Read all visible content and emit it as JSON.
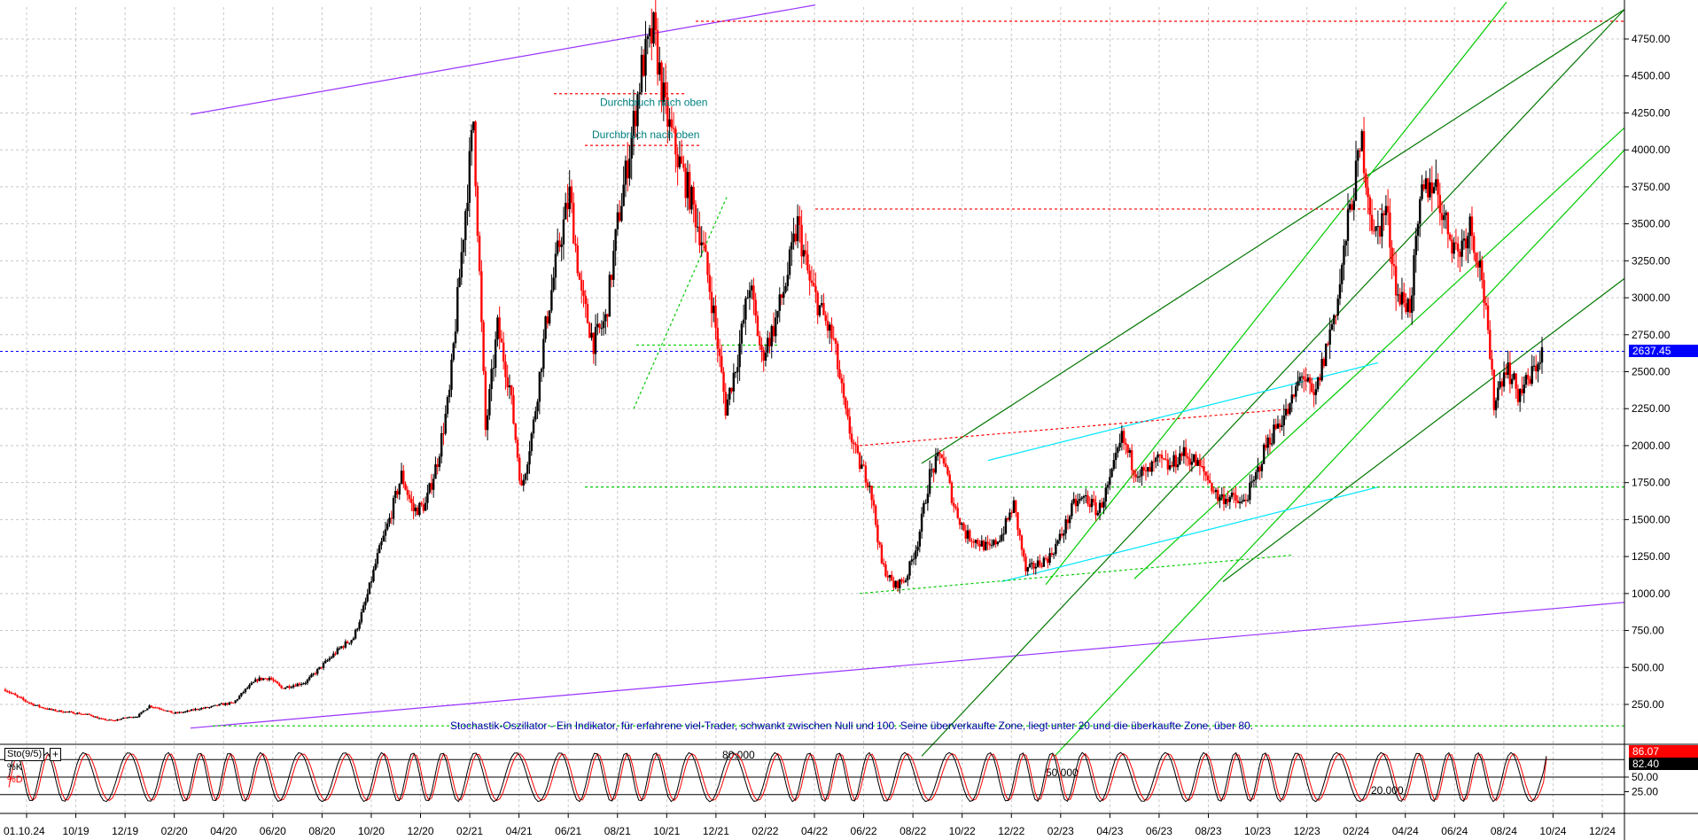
{
  "chart_data": [
    {
      "type": "candlestick",
      "ylim": [
        0,
        5000
      ],
      "y_ticks": [
        "250.00",
        "500.00",
        "750.00",
        "1000.00",
        "1250.00",
        "1500.00",
        "1750.00",
        "2000.00",
        "2250.00",
        "2500.00",
        "2750.00",
        "3000.00",
        "3250.00",
        "3500.00",
        "3750.00",
        "4000.00",
        "4250.00",
        "4500.00",
        "4750.00"
      ],
      "y_tick_values": [
        250,
        500,
        750,
        1000,
        1250,
        1500,
        1750,
        2000,
        2250,
        2500,
        2750,
        3000,
        3250,
        3500,
        3750,
        4000,
        4250,
        4500,
        4750
      ],
      "x_ticks": [
        "01.10.24",
        "10/19",
        "12/19",
        "02/20",
        "04/20",
        "06/20",
        "08/20",
        "10/20",
        "12/20",
        "02/21",
        "04/21",
        "06/21",
        "08/21",
        "10/21",
        "12/21",
        "02/22",
        "04/22",
        "06/22",
        "08/22",
        "10/22",
        "12/22",
        "02/23",
        "04/23",
        "06/23",
        "08/23",
        "10/23",
        "12/23",
        "02/24",
        "04/24",
        "06/24",
        "08/24",
        "10/24",
        "12/24"
      ],
      "grid": true,
      "last_price": "2637.45",
      "last_price_value": 2637.45,
      "annotations": [
        "Durchbruch nach oben",
        "Durchbruch nach oben"
      ],
      "description_text": "Stochastik-Oszillator - Ein Indikator, für erfahrene viel-Trader, schwankt zwischen Null und 100. Seine überverkaufte Zone, liegt unter 20 und die überkaufte Zone, über 80.",
      "price_path": [
        [
          0,
          350
        ],
        [
          1,
          300
        ],
        [
          2,
          260
        ],
        [
          3,
          230
        ],
        [
          4,
          210
        ],
        [
          5,
          200
        ],
        [
          6,
          190
        ],
        [
          7,
          180
        ],
        [
          8,
          150
        ],
        [
          9,
          140
        ],
        [
          10,
          160
        ],
        [
          11,
          170
        ],
        [
          12,
          240
        ],
        [
          13,
          220
        ],
        [
          14,
          190
        ],
        [
          15,
          200
        ],
        [
          16,
          220
        ],
        [
          17,
          230
        ],
        [
          18,
          250
        ],
        [
          19,
          260
        ],
        [
          20,
          350
        ],
        [
          21,
          420
        ],
        [
          22,
          430
        ],
        [
          23,
          360
        ],
        [
          24,
          380
        ],
        [
          25,
          400
        ],
        [
          26,
          480
        ],
        [
          27,
          560
        ],
        [
          28,
          640
        ],
        [
          29,
          700
        ],
        [
          30,
          940
        ],
        [
          31,
          1250
        ],
        [
          32,
          1500
        ],
        [
          33,
          1800
        ],
        [
          34,
          1560
        ],
        [
          35,
          1600
        ],
        [
          36,
          1900
        ],
        [
          37,
          2350
        ],
        [
          38,
          3300
        ],
        [
          39,
          4200
        ],
        [
          40,
          2100
        ],
        [
          41,
          2800
        ],
        [
          42,
          2400
        ],
        [
          43,
          1700
        ],
        [
          44,
          2150
        ],
        [
          45,
          2800
        ],
        [
          46,
          3300
        ],
        [
          47,
          3700
        ],
        [
          48,
          3000
        ],
        [
          49,
          2700
        ],
        [
          50,
          2850
        ],
        [
          51,
          3500
        ],
        [
          52,
          4000
        ],
        [
          53,
          4550
        ],
        [
          54,
          4800
        ],
        [
          55,
          4250
        ],
        [
          56,
          3950
        ],
        [
          57,
          3700
        ],
        [
          58,
          3400
        ],
        [
          59,
          2900
        ],
        [
          60,
          2250
        ],
        [
          61,
          2600
        ],
        [
          62,
          3100
        ],
        [
          63,
          2600
        ],
        [
          64,
          2800
        ],
        [
          65,
          3100
        ],
        [
          66,
          3500
        ],
        [
          67,
          3100
        ],
        [
          68,
          2900
        ],
        [
          69,
          2700
        ],
        [
          70,
          2200
        ],
        [
          71,
          1900
        ],
        [
          72,
          1750
        ],
        [
          73,
          1200
        ],
        [
          74,
          1050
        ],
        [
          75,
          1100
        ],
        [
          76,
          1350
        ],
        [
          77,
          1800
        ],
        [
          78,
          1950
        ],
        [
          79,
          1600
        ],
        [
          80,
          1400
        ],
        [
          81,
          1350
        ],
        [
          82,
          1300
        ],
        [
          83,
          1400
        ],
        [
          84,
          1600
        ],
        [
          85,
          1150
        ],
        [
          86,
          1200
        ],
        [
          87,
          1250
        ],
        [
          88,
          1400
        ],
        [
          89,
          1600
        ],
        [
          90,
          1650
        ],
        [
          91,
          1550
        ],
        [
          92,
          1750
        ],
        [
          93,
          2050
        ],
        [
          94,
          1850
        ],
        [
          95,
          1800
        ],
        [
          96,
          1900
        ],
        [
          97,
          1850
        ],
        [
          98,
          1950
        ],
        [
          99,
          1900
        ],
        [
          100,
          1800
        ],
        [
          101,
          1650
        ],
        [
          102,
          1650
        ],
        [
          103,
          1600
        ],
        [
          104,
          1750
        ],
        [
          105,
          2000
        ],
        [
          106,
          2150
        ],
        [
          107,
          2250
        ],
        [
          108,
          2500
        ],
        [
          109,
          2300
        ],
        [
          110,
          2650
        ],
        [
          111,
          3000
        ],
        [
          112,
          3600
        ],
        [
          113,
          4050
        ],
        [
          114,
          3400
        ],
        [
          115,
          3600
        ],
        [
          116,
          3000
        ],
        [
          117,
          2950
        ],
        [
          118,
          3700
        ],
        [
          119,
          3800
        ],
        [
          120,
          3500
        ],
        [
          121,
          3300
        ],
        [
          122,
          3500
        ],
        [
          123,
          3150
        ],
        [
          124,
          2300
        ],
        [
          125,
          2550
        ],
        [
          126,
          2350
        ],
        [
          127,
          2450
        ],
        [
          128,
          2640
        ]
      ]
    },
    {
      "type": "line",
      "title": "Sto(9/5)",
      "legend": [
        "%K",
        "%D"
      ],
      "ylim": [
        0,
        100
      ],
      "y_ticks": [
        "50.00",
        "25.00"
      ],
      "y_tick_values": [
        50,
        25
      ],
      "levels": [
        {
          "value": 80,
          "label": "80.000"
        },
        {
          "value": 50,
          "label": "50.000"
        },
        {
          "value": 20,
          "label": "20.000"
        }
      ],
      "last_k": "86.07",
      "last_d": "82.40",
      "last_k_value": 86.07,
      "last_d_value": 82.4
    }
  ],
  "colors": {
    "bull": "#000000",
    "bear": "#ff0000",
    "trend_purple": "#9933ff",
    "trend_green": "#00cc00",
    "trend_darkgreen": "#007700",
    "trend_cyan": "#00e5ff",
    "price_line": "#0000ff",
    "annotation": "#008080",
    "desc_text": "#0000aa",
    "last_price_bg": "#0000ff",
    "k_tag_bg": "#ff0000",
    "d_tag_bg": "#000000"
  },
  "indicator_box": {
    "label": "Sto(9/5)",
    "plus": "+",
    "k_label": "%K",
    "d_label": "%D"
  }
}
